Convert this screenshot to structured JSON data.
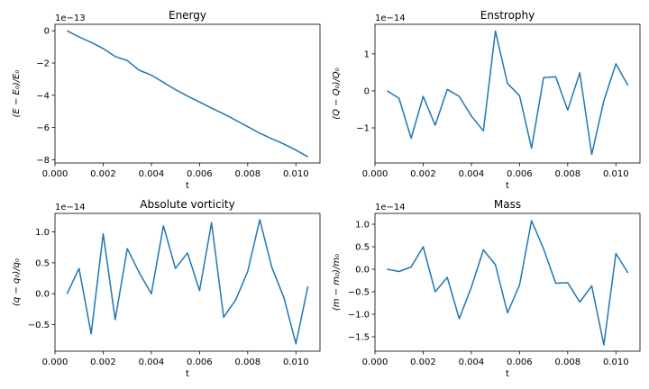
{
  "figure": {
    "line_color": "#1f77b4"
  },
  "chart_data": [
    {
      "type": "line",
      "title": "Energy",
      "xlabel": "t",
      "ylabel": "(E − E₀)/E₀",
      "offset_text": "1e−13",
      "xlim": [
        0,
        0.011
      ],
      "ylim": [
        -8.2,
        0.4
      ],
      "xticks": [
        0.0,
        0.002,
        0.004,
        0.006,
        0.008,
        0.01
      ],
      "xtick_labels": [
        "0.000",
        "0.002",
        "0.004",
        "0.006",
        "0.008",
        "0.010"
      ],
      "yticks": [
        0,
        -2,
        -4,
        -6,
        -8
      ],
      "ytick_labels": [
        "0",
        "−2",
        "−4",
        "−6",
        "−8"
      ],
      "series": [
        {
          "x": [
            0.0005,
            0.001,
            0.0015,
            0.002,
            0.0025,
            0.003,
            0.0035,
            0.004,
            0.0045,
            0.005,
            0.0055,
            0.006,
            0.0065,
            0.007,
            0.0075,
            0.008,
            0.0085,
            0.009,
            0.0095,
            0.01,
            0.0105
          ],
          "y": [
            0,
            -0.38,
            -0.72,
            -1.1,
            -1.6,
            -1.85,
            -2.45,
            -2.75,
            -3.2,
            -3.65,
            -4.05,
            -4.42,
            -4.8,
            -5.15,
            -5.55,
            -5.95,
            -6.35,
            -6.7,
            -7.02,
            -7.4,
            -7.82
          ]
        }
      ]
    },
    {
      "type": "line",
      "title": "Enstrophy",
      "xlabel": "t",
      "ylabel": "(Q − Q₀)/Q₀",
      "offset_text": "1e−14",
      "xlim": [
        0,
        0.011
      ],
      "ylim": [
        -1.95,
        1.8
      ],
      "xticks": [
        0.0,
        0.002,
        0.004,
        0.006,
        0.008,
        0.01
      ],
      "xtick_labels": [
        "0.000",
        "0.002",
        "0.004",
        "0.006",
        "0.008",
        "0.010"
      ],
      "yticks": [
        1,
        0,
        -1
      ],
      "ytick_labels": [
        "1",
        "0",
        "−1"
      ],
      "series": [
        {
          "x": [
            0.0005,
            0.001,
            0.0015,
            0.002,
            0.0025,
            0.003,
            0.0035,
            0.004,
            0.0045,
            0.005,
            0.0055,
            0.006,
            0.0065,
            0.007,
            0.0075,
            0.008,
            0.0085,
            0.009,
            0.0095,
            0.01,
            0.0105
          ],
          "y": [
            0,
            -0.2,
            -1.28,
            -0.15,
            -0.93,
            0.04,
            -0.15,
            -0.68,
            -1.08,
            1.62,
            0.2,
            -0.13,
            -1.55,
            0.36,
            0.38,
            -0.52,
            0.49,
            -1.72,
            -0.27,
            0.73,
            0.15
          ]
        }
      ]
    },
    {
      "type": "line",
      "title": "Absolute vorticity",
      "xlabel": "t",
      "ylabel": "(q − q₀)/q₀",
      "offset_text": "1e−14",
      "xlim": [
        0,
        0.011
      ],
      "ylim": [
        -0.93,
        1.3
      ],
      "xticks": [
        0.0,
        0.002,
        0.004,
        0.006,
        0.008,
        0.01
      ],
      "xtick_labels": [
        "0.000",
        "0.002",
        "0.004",
        "0.006",
        "0.008",
        "0.010"
      ],
      "yticks": [
        1.0,
        0.5,
        0.0,
        -0.5
      ],
      "ytick_labels": [
        "1.0",
        "0.5",
        "0.0",
        "−0.5"
      ],
      "series": [
        {
          "x": [
            0.0005,
            0.001,
            0.0015,
            0.002,
            0.0025,
            0.003,
            0.0035,
            0.004,
            0.0045,
            0.005,
            0.0055,
            0.006,
            0.0065,
            0.007,
            0.0075,
            0.008,
            0.0085,
            0.009,
            0.0095,
            0.01,
            0.0105
          ],
          "y": [
            0,
            0.41,
            -0.65,
            0.97,
            -0.42,
            0.73,
            0.34,
            0.0,
            1.1,
            0.41,
            0.66,
            0.05,
            1.15,
            -0.38,
            -0.1,
            0.36,
            1.2,
            0.43,
            -0.06,
            -0.81,
            0.12
          ]
        }
      ]
    },
    {
      "type": "line",
      "title": "Mass",
      "xlabel": "t",
      "ylabel": "(m − m₀)/m₀",
      "offset_text": "1e−14",
      "xlim": [
        0,
        0.011
      ],
      "ylim": [
        -1.82,
        1.24
      ],
      "xticks": [
        0.0,
        0.002,
        0.004,
        0.006,
        0.008,
        0.01
      ],
      "xtick_labels": [
        "0.000",
        "0.002",
        "0.004",
        "0.006",
        "0.008",
        "0.010"
      ],
      "yticks": [
        1.0,
        0.5,
        0.0,
        -0.5,
        -1.0,
        -1.5
      ],
      "ytick_labels": [
        "1.0",
        "0.5",
        "0.0",
        "−0.5",
        "−1.0",
        "−1.5"
      ],
      "series": [
        {
          "x": [
            0.0005,
            0.001,
            0.0015,
            0.002,
            0.0025,
            0.003,
            0.0035,
            0.004,
            0.0045,
            0.005,
            0.0055,
            0.006,
            0.0065,
            0.007,
            0.0075,
            0.008,
            0.0085,
            0.009,
            0.0095,
            0.01,
            0.0105
          ],
          "y": [
            0,
            -0.05,
            0.05,
            0.5,
            -0.5,
            -0.18,
            -1.1,
            -0.4,
            0.43,
            0.1,
            -0.97,
            -0.35,
            1.08,
            0.45,
            -0.31,
            -0.3,
            -0.73,
            -0.37,
            -1.68,
            0.35,
            -0.08
          ]
        }
      ]
    }
  ]
}
